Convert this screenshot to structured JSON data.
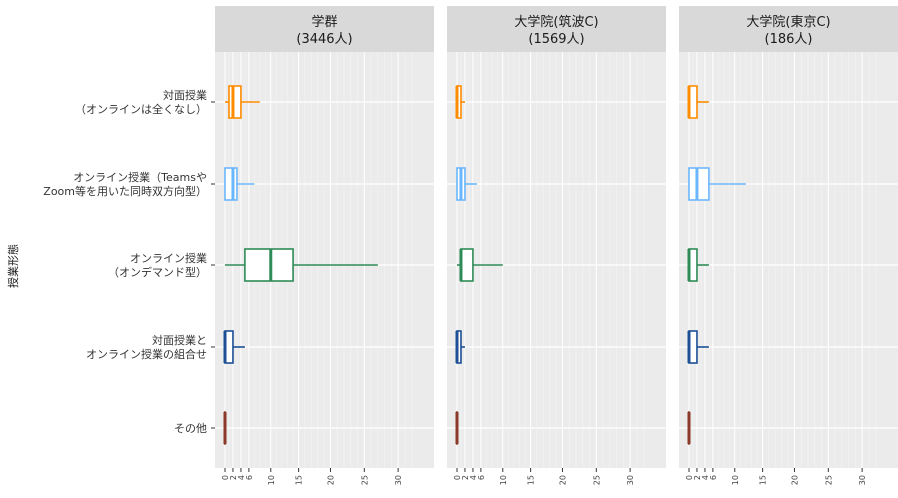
{
  "chart_data": {
    "type": "boxplot",
    "orientation": "horizontal",
    "ylabel": "授業形態",
    "xlim": [
      0,
      32
    ],
    "x_ticks": [
      "0",
      "2",
      "4",
      "6",
      "10",
      "15",
      "20",
      "25",
      "30"
    ],
    "x_tick_values": [
      0,
      2,
      4,
      6,
      10,
      15,
      20,
      25,
      30
    ],
    "categories": [
      [
        "対面授業",
        "（オンラインは全くなし）"
      ],
      [
        "オンライン授業（Teamsや",
        "Zoom等を用いた同時双方向型）"
      ],
      [
        "オンライン授業",
        "（オンデマンド型）"
      ],
      [
        "対面授業と",
        "オンライン授業の組合せ"
      ],
      [
        "その他"
      ]
    ],
    "colors": [
      "#ff8c00",
      "#6bb7ff",
      "#2e8b57",
      "#1c4f96",
      "#8b3a2a"
    ],
    "panels": [
      {
        "title": "学群",
        "subtitle": "(3446人)",
        "boxes": [
          {
            "min": 0,
            "q1": 1,
            "median": 2,
            "q3": 4,
            "max": 8
          },
          {
            "min": 0,
            "q1": 0,
            "median": 2,
            "q3": 3,
            "max": 7
          },
          {
            "min": 0,
            "q1": 5,
            "median": 10,
            "q3": 14,
            "max": 27
          },
          {
            "min": 0,
            "q1": 0,
            "median": 0,
            "q3": 2,
            "max": 5
          },
          {
            "min": 0,
            "q1": 0,
            "median": 0,
            "q3": 0,
            "max": 0
          }
        ]
      },
      {
        "title": "大学院(筑波C)",
        "subtitle": "(1569人)",
        "boxes": [
          {
            "min": 0,
            "q1": 0,
            "median": 0,
            "q3": 1,
            "max": 2
          },
          {
            "min": 0,
            "q1": 0,
            "median": 1,
            "q3": 2,
            "max": 5
          },
          {
            "min": 0,
            "q1": 1,
            "median": 1,
            "q3": 4,
            "max": 10
          },
          {
            "min": 0,
            "q1": 0,
            "median": 0,
            "q3": 1,
            "max": 2
          },
          {
            "min": 0,
            "q1": 0,
            "median": 0,
            "q3": 0,
            "max": 0
          }
        ]
      },
      {
        "title": "大学院(東京C)",
        "subtitle": "(186人)",
        "boxes": [
          {
            "min": 0,
            "q1": 0,
            "median": 0,
            "q3": 2,
            "max": 5
          },
          {
            "min": 0,
            "q1": 0,
            "median": 2,
            "q3": 5,
            "max": 12
          },
          {
            "min": 0,
            "q1": 0,
            "median": 0,
            "q3": 2,
            "max": 5
          },
          {
            "min": 0,
            "q1": 0,
            "median": 0,
            "q3": 2,
            "max": 5
          },
          {
            "min": 0,
            "q1": 0,
            "median": 0,
            "q3": 0,
            "max": 0
          }
        ]
      }
    ]
  }
}
